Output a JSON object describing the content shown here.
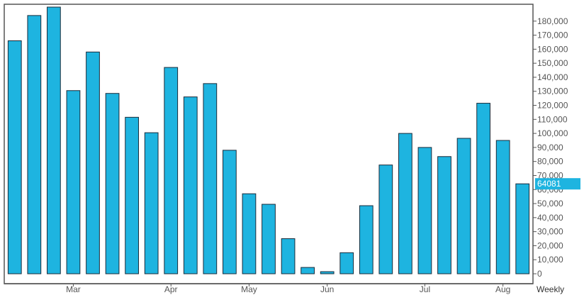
{
  "chart_data": {
    "type": "bar",
    "title": "",
    "xlabel": "",
    "ylabel": "",
    "ylim": [
      0,
      190000
    ],
    "y_axis_side": "right",
    "grid": false,
    "bar_color": "#1eb4e0",
    "bar_outline_color": "#1a2b3a",
    "frame_color": "#555555",
    "y_ticks": [
      0,
      10000,
      20000,
      30000,
      40000,
      50000,
      60000,
      70000,
      80000,
      90000,
      100000,
      110000,
      120000,
      130000,
      140000,
      150000,
      160000,
      170000,
      180000
    ],
    "y_tick_labels": [
      "0",
      "10,000",
      "20,000",
      "30,000",
      "40,000",
      "50,000",
      "60,000",
      "70,000",
      "80,000",
      "90,000",
      "100,000",
      "110,000",
      "120,000",
      "130,000",
      "140,000",
      "150,000",
      "160,000",
      "170,000",
      "180,000"
    ],
    "x_month_labels": [
      {
        "label": "Mar",
        "index": 3
      },
      {
        "label": "Apr",
        "index": 8
      },
      {
        "label": "May",
        "index": 12
      },
      {
        "label": "Jun",
        "index": 16
      },
      {
        "label": "Jul",
        "index": 21
      },
      {
        "label": "Aug",
        "index": 25
      }
    ],
    "period_label": "Weekly",
    "values": [
      166000,
      184000,
      190000,
      130500,
      158000,
      128500,
      111500,
      100500,
      147000,
      126000,
      135500,
      88000,
      57000,
      49500,
      25000,
      4500,
      1500,
      15000,
      48500,
      77500,
      100000,
      90000,
      83500,
      96500,
      121500,
      95000,
      64081
    ],
    "last_value_label": "64081"
  }
}
